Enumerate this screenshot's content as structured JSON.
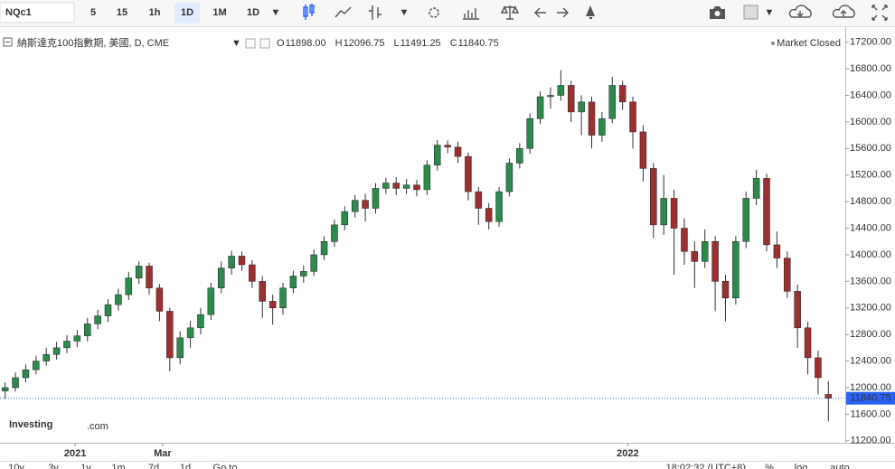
{
  "toolbar": {
    "symbol": "NQc1",
    "buttons": [
      "5",
      "15",
      "1h",
      "1D",
      "1M",
      "1D"
    ]
  },
  "legend": {
    "title": "納斯達克100指數期, 美國, D, CME",
    "ohlc": [
      [
        "O",
        "11898.00"
      ],
      [
        "H",
        "12096.75"
      ],
      [
        "L",
        "11491.25"
      ],
      [
        "C",
        "11840.75"
      ]
    ],
    "status": "Market Closed"
  },
  "logo": {
    "brand": "Investing",
    "suffix": ".com"
  },
  "bottom_bar": {
    "ranges": [
      "10y",
      "3y",
      "1y",
      "1m",
      "7d",
      "1d",
      "Go to"
    ],
    "clock": "18:02:32 (UTC+8)",
    "options": [
      "%",
      "log",
      "auto"
    ]
  },
  "chart_data": {
    "type": "candlestick",
    "up_color": "#2b8a4c",
    "down_color": "#9c2f2f",
    "wick_color": "#333333",
    "last_price_color": "#2962ff",
    "grid": false,
    "xlim": [
      -0.5,
      80.5
    ],
    "xticks": [
      {
        "value": 6.8,
        "label": "2021"
      },
      {
        "value": 15.3,
        "label": "Mar"
      },
      {
        "value": 60.5,
        "label": "2022"
      }
    ],
    "ylim": [
      11170,
      17400
    ],
    "yticks": [
      {
        "value": 11200,
        "label": "11200.00"
      },
      {
        "value": 11600,
        "label": "11600.00"
      },
      {
        "value": 12000,
        "label": "12000.00"
      },
      {
        "value": 12400,
        "label": "12400.00"
      },
      {
        "value": 12800,
        "label": "12800.00"
      },
      {
        "value": 13200,
        "label": "13200.00"
      },
      {
        "value": 13600,
        "label": "13600.00"
      },
      {
        "value": 14000,
        "label": "14000.00"
      },
      {
        "value": 14400,
        "label": "14400.00"
      },
      {
        "value": 14800,
        "label": "14800.00"
      },
      {
        "value": 15200,
        "label": "15200.00"
      },
      {
        "value": 15600,
        "label": "15600.00"
      },
      {
        "value": 16000,
        "label": "16000.00"
      },
      {
        "value": 16400,
        "label": "16400.00"
      },
      {
        "value": 16800,
        "label": "16800.00"
      },
      {
        "value": 17200,
        "label": "17200.00"
      }
    ],
    "open": [
      11950,
      12000,
      12150,
      12270,
      12400,
      12500,
      12600,
      12700,
      12780,
      12960,
      13080,
      13250,
      13400,
      13650,
      13830,
      13500,
      13150,
      12450,
      12750,
      12900,
      13100,
      13500,
      13800,
      13980,
      13850,
      13600,
      13300,
      13200,
      13500,
      13680,
      13750,
      14000,
      14200,
      14450,
      14650,
      14820,
      14700,
      15000,
      15080,
      15000,
      15050,
      14980,
      15350,
      15650,
      15620,
      15480,
      14950,
      14700,
      14500,
      14950,
      15380,
      15600,
      16050,
      16380,
      16400,
      16550,
      16150,
      16300,
      15800,
      16050,
      16550,
      16300,
      15850,
      15300,
      14450,
      14850,
      14400,
      14050,
      13900,
      14200,
      13600,
      13350,
      14200,
      14850,
      15150,
      14150,
      13950,
      13450,
      12900,
      12450,
      11898
    ],
    "high": [
      12080,
      12230,
      12350,
      12480,
      12600,
      12690,
      12790,
      12870,
      13050,
      13170,
      13330,
      13490,
      13740,
      13900,
      13880,
      13560,
      13200,
      12850,
      13000,
      13200,
      13580,
      13900,
      14060,
      14050,
      13920,
      13680,
      13400,
      13580,
      13760,
      13840,
      14080,
      14280,
      14530,
      14730,
      14900,
      14920,
      15080,
      15160,
      15170,
      15140,
      15130,
      15420,
      15730,
      15720,
      15700,
      15540,
      15020,
      14780,
      15020,
      15450,
      15680,
      16130,
      16460,
      16520,
      16780,
      16620,
      16400,
      16380,
      16150,
      16680,
      16620,
      16380,
      15950,
      15380,
      15200,
      14980,
      14550,
      14200,
      14380,
      14280,
      13700,
      14280,
      14950,
      15280,
      15220,
      14350,
      14050,
      13550,
      12990,
      12560,
      12096.75
    ],
    "low": [
      11830,
      11940,
      12080,
      12200,
      12330,
      12420,
      12520,
      12610,
      12700,
      12880,
      12990,
      13160,
      13320,
      13560,
      13400,
      13000,
      12250,
      12350,
      12600,
      12800,
      13020,
      13420,
      13700,
      13760,
      13500,
      13050,
      12950,
      13100,
      13420,
      13580,
      13680,
      13920,
      14120,
      14370,
      14560,
      14500,
      14620,
      14920,
      14900,
      14910,
      14880,
      14900,
      15270,
      15530,
      15380,
      14820,
      14450,
      14380,
      14420,
      14880,
      15300,
      15520,
      15970,
      16200,
      16320,
      16000,
      15800,
      15600,
      15700,
      15980,
      16180,
      15600,
      15100,
      14250,
      14300,
      13700,
      13850,
      13500,
      13800,
      13150,
      13000,
      13250,
      14100,
      14750,
      14050,
      13800,
      13350,
      12600,
      12200,
      11900,
      11491.25
    ],
    "close": [
      12000,
      12150,
      12270,
      12400,
      12500,
      12600,
      12700,
      12780,
      12960,
      13080,
      13250,
      13400,
      13650,
      13830,
      13500,
      13150,
      12450,
      12750,
      12900,
      13100,
      13500,
      13800,
      13980,
      13850,
      13600,
      13300,
      13200,
      13500,
      13680,
      13750,
      14000,
      14200,
      14450,
      14650,
      14820,
      14700,
      15000,
      15080,
      15000,
      15050,
      14980,
      15350,
      15650,
      15620,
      15480,
      14950,
      14700,
      14500,
      14950,
      15380,
      15600,
      16050,
      16380,
      16400,
      16550,
      16150,
      16300,
      15800,
      16050,
      16550,
      16300,
      15850,
      15300,
      14450,
      14850,
      14400,
      14050,
      13900,
      14200,
      13600,
      13350,
      14200,
      14850,
      15150,
      14150,
      13950,
      13450,
      12900,
      12450,
      12150,
      11840.75
    ]
  }
}
